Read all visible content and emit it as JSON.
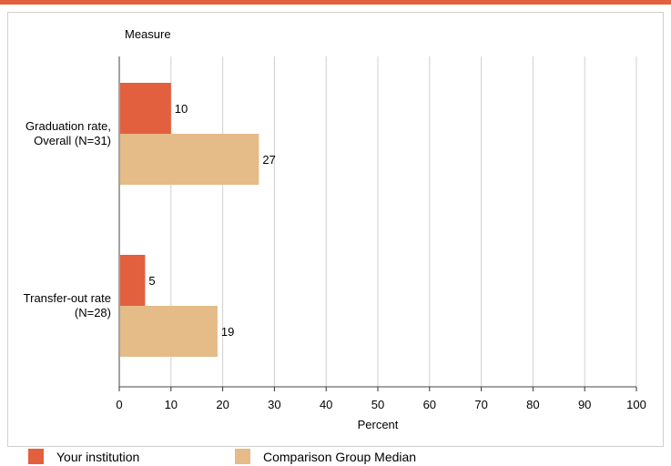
{
  "colors": {
    "accent": "#E2603E",
    "your_institution": "#E2603E",
    "comparison": "#E5BB88",
    "grid": "#d0d0d0"
  },
  "chart_data": {
    "type": "bar",
    "orientation": "horizontal",
    "title": "",
    "category_axis_label": "Measure",
    "xlabel": "Percent",
    "xlim": [
      0,
      100
    ],
    "x_ticks": [
      0,
      10,
      20,
      30,
      40,
      50,
      60,
      70,
      80,
      90,
      100
    ],
    "grid": true,
    "legend_position": "bottom",
    "categories": [
      {
        "line1": "Graduation rate,",
        "line2": "Overall (N=31)"
      },
      {
        "line1": "Transfer-out rate",
        "line2": "(N=28)"
      }
    ],
    "series": [
      {
        "name": "Your institution",
        "values": [
          10,
          5
        ]
      },
      {
        "name": "Comparison Group Median",
        "values": [
          27,
          19
        ]
      }
    ]
  }
}
